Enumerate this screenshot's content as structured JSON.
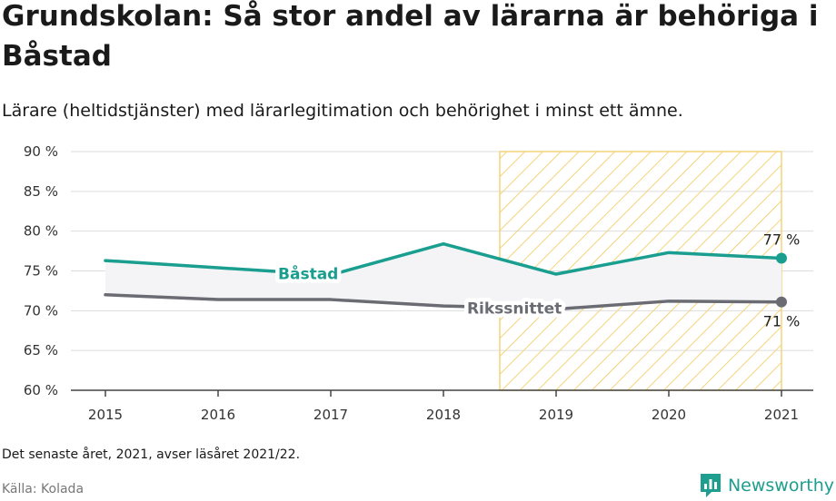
{
  "header": {
    "title": "Grundskolan: Så stor andel av lärarna är behöriga i Båstad",
    "subtitle": "Lärare (heltidstjänster) med lärarlegitimation och behörighet i minst ett ämne."
  },
  "footer": {
    "note": "Det senaste året, 2021, avser läsåret 2021/22.",
    "source": "Källa: Kolada",
    "brand": "Newsworthy",
    "brand_icon": "newsworthy-logo-icon"
  },
  "colors": {
    "primary": "#1a9e8f",
    "national": "#6b6b73",
    "highlight_stroke": "#f5d37a",
    "grid": "#dddddd",
    "fill": "#f4f4f6"
  },
  "chart_data": {
    "type": "line",
    "x": [
      2015,
      2016,
      2017,
      2018,
      2019,
      2020,
      2021
    ],
    "series": [
      {
        "name": "Båstad",
        "values": [
          76.3,
          75.4,
          74.5,
          78.4,
          74.6,
          77.3,
          76.6
        ],
        "end_label": "77 %"
      },
      {
        "name": "Rikssnittet",
        "values": [
          72.0,
          71.4,
          71.4,
          70.6,
          70.2,
          71.2,
          71.1
        ],
        "end_label": "71 %"
      }
    ],
    "ylim": [
      60,
      90
    ],
    "yticks": [
      60,
      65,
      70,
      75,
      80,
      85,
      90
    ],
    "ytick_labels": [
      "60 %",
      "65 %",
      "70 %",
      "75 %",
      "80 %",
      "85 %",
      "90 %"
    ],
    "xtick_labels": [
      "2015",
      "2016",
      "2017",
      "2018",
      "2019",
      "2020",
      "2021"
    ],
    "highlight_range": [
      2018.5,
      2021
    ],
    "grid": true,
    "legend": "inline"
  }
}
